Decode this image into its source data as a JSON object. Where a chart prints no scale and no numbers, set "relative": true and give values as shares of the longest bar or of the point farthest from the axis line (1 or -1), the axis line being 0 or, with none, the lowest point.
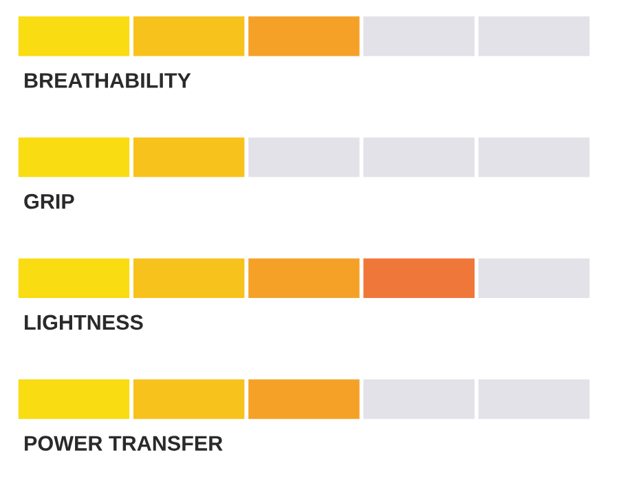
{
  "chart_data": {
    "type": "bar",
    "orientation": "horizontal",
    "stacked": true,
    "relative": true,
    "categories": [
      "BREATHABILITY",
      "GRIP",
      "LIGHTNESS",
      "POWER TRANSFER"
    ],
    "series": [
      {
        "values": [
          0.2,
          0.2,
          0.2,
          0.2
        ],
        "colors": [
          "#f9dc12",
          "#f9dc12",
          "#f9dc12",
          "#f9dc12"
        ]
      },
      {
        "values": [
          0.2,
          0.2,
          0.2,
          0.2
        ],
        "colors": [
          "#f8c21c",
          "#f8c21c",
          "#f8c21c",
          "#f8c21c"
        ]
      },
      {
        "values": [
          0.2,
          0.2,
          0.2,
          0.2
        ],
        "colors": [
          "#f5a128",
          "#e3e2e8",
          "#f5a128",
          "#f5a128"
        ]
      },
      {
        "values": [
          0.2,
          0.2,
          0.2,
          0.2
        ],
        "colors": [
          "#e3e2e8",
          "#e3e2e8",
          "#f0773a",
          "#e3e2e8"
        ]
      },
      {
        "values": [
          0.2,
          0.2,
          0.2,
          0.2
        ],
        "colors": [
          "#e3e2e8",
          "#e3e2e8",
          "#e3e2e8",
          "#e3e2e8"
        ]
      }
    ],
    "legend": false
  }
}
